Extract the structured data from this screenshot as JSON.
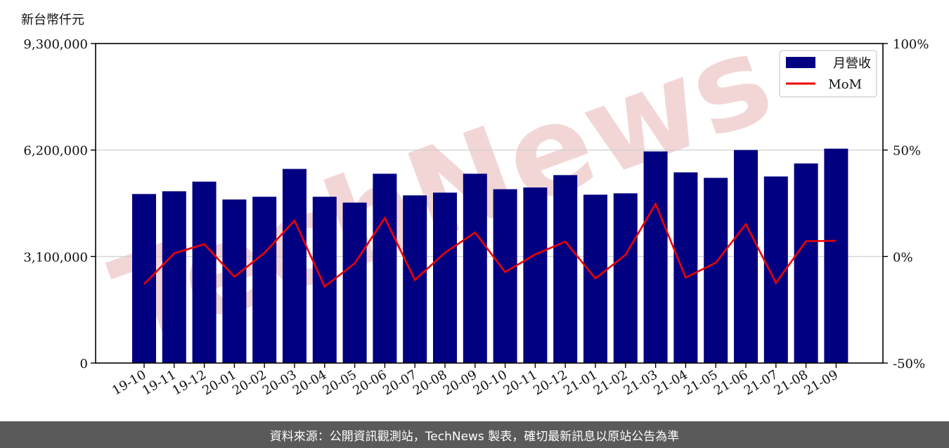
{
  "unit_label": "新台幣仟元",
  "footer_text": "資料來源：公開資訊觀測站，TechNews 製表，確切最新訊息以原站公告為準",
  "watermark_text": "TechNews",
  "colors": {
    "bar": "#000080",
    "line": "#ee0000",
    "grid": "#cccccc",
    "footer_bg": "#5a5a5a",
    "watermark": "#f2d6d6"
  },
  "chart_data": {
    "type": "bar",
    "categories": [
      "19-10",
      "19-11",
      "19-12",
      "20-01",
      "20-02",
      "20-03",
      "20-04",
      "20-05",
      "20-06",
      "20-07",
      "20-08",
      "20-09",
      "20-10",
      "20-11",
      "20-12",
      "21-01",
      "21-02",
      "21-03",
      "21-04",
      "21-05",
      "21-06",
      "21-07",
      "21-08",
      "21-09"
    ],
    "series": [
      {
        "name": "月營收",
        "type": "bar",
        "axis": "left",
        "values": [
          4920000,
          5000000,
          5280000,
          4760000,
          4840000,
          5650000,
          4840000,
          4670000,
          5510000,
          4880000,
          4960000,
          5510000,
          5060000,
          5110000,
          5470000,
          4900000,
          4940000,
          6160000,
          5550000,
          5390000,
          6200000,
          5430000,
          5810000,
          6240000
        ]
      },
      {
        "name": "MoM",
        "type": "line",
        "axis": "right",
        "values": [
          -13,
          1.5,
          5.8,
          -9.5,
          1.7,
          16.9,
          -14.1,
          -3.2,
          18.1,
          -11,
          1.8,
          11.3,
          -7.3,
          1.0,
          7.0,
          -10.3,
          0.8,
          24.7,
          -9.9,
          -2.9,
          15.2,
          -12.4,
          7.2,
          7.4
        ]
      }
    ],
    "ylim": [
      0,
      9300000
    ],
    "yticks": [
      "0",
      "3,100,000",
      "6,200,000",
      "9,300,000"
    ],
    "ytick_values": [
      0,
      3100000,
      6200000,
      9300000
    ],
    "y2lim": [
      -50,
      100
    ],
    "y2ticks": [
      "-50%",
      "0%",
      "50%",
      "100%"
    ],
    "y2tick_values": [
      -50,
      0,
      50,
      100
    ],
    "grid": "horizontal",
    "legend": {
      "position": "top-right",
      "items": [
        "月營收",
        "MoM"
      ]
    }
  }
}
